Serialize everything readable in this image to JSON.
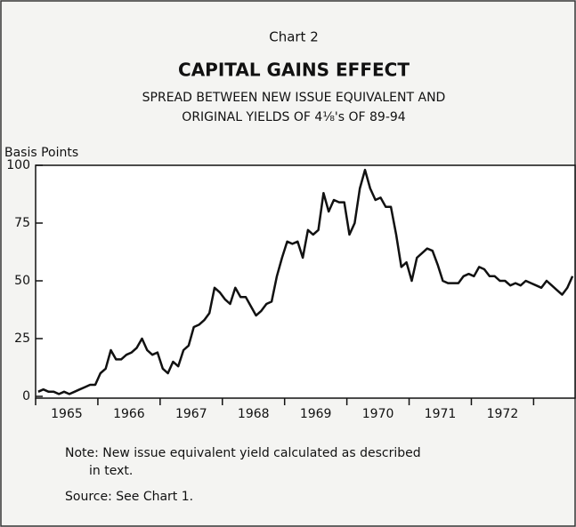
{
  "chart_data": {
    "type": "line",
    "label": "Chart 2",
    "title": "CAPITAL GAINS EFFECT",
    "subtitle": [
      "SPREAD BETWEEN NEW ISSUE EQUIVALENT AND",
      "ORIGINAL YIELDS OF 4⅛'s OF 89-94"
    ],
    "y_label": "Basis Points",
    "categories": [
      null,
      null,
      null,
      null,
      null,
      null,
      "1965",
      null,
      null,
      null,
      null,
      null,
      null,
      null,
      null,
      null,
      null,
      null,
      "1966",
      null,
      null,
      null,
      null,
      null,
      null,
      null,
      null,
      null,
      null,
      null,
      "1967",
      null,
      null,
      null,
      null,
      null,
      null,
      null,
      null,
      null,
      null,
      null,
      "1968",
      null,
      null,
      null,
      null,
      null,
      null,
      null,
      null,
      null,
      null,
      null,
      "1969",
      null,
      null,
      null,
      null,
      null,
      null,
      null,
      null,
      null,
      null,
      null,
      "1970",
      null,
      null,
      null,
      null,
      null,
      null,
      null,
      null,
      null,
      null,
      null,
      "1971",
      null,
      null,
      null,
      null,
      null,
      null,
      null,
      null,
      null,
      null,
      null,
      "1972",
      null,
      null,
      null,
      null,
      null,
      null,
      null,
      null,
      null,
      null,
      null,
      null,
      null
    ],
    "values": [
      2,
      3,
      2,
      2,
      1,
      2,
      1,
      2,
      3,
      4,
      5,
      5,
      10,
      12,
      20,
      16,
      16,
      18,
      19,
      21,
      25,
      20,
      18,
      19,
      12,
      10,
      15,
      13,
      20,
      22,
      30,
      31,
      33,
      36,
      47,
      45,
      42,
      40,
      47,
      43,
      43,
      39,
      35,
      37,
      40,
      41,
      52,
      60,
      67,
      66,
      67,
      60,
      72,
      70,
      72,
      88,
      80,
      85,
      84,
      84,
      70,
      75,
      90,
      98,
      90,
      85,
      86,
      82,
      82,
      70,
      56,
      58,
      50,
      60,
      62,
      64,
      63,
      57,
      50,
      49,
      49,
      49,
      52,
      53,
      52,
      56,
      55,
      52,
      52,
      50,
      50,
      48,
      49,
      48,
      50,
      49,
      48,
      47,
      50,
      48,
      46,
      44,
      47,
      52
    ],
    "color": "#111111",
    "ylim": [
      0,
      100
    ],
    "yticks": [
      0,
      25,
      50,
      75,
      100
    ],
    "note": [
      "Note:  New issue equivalent yield calculated as described",
      "in text."
    ],
    "source": "Source:  See Chart 1."
  }
}
